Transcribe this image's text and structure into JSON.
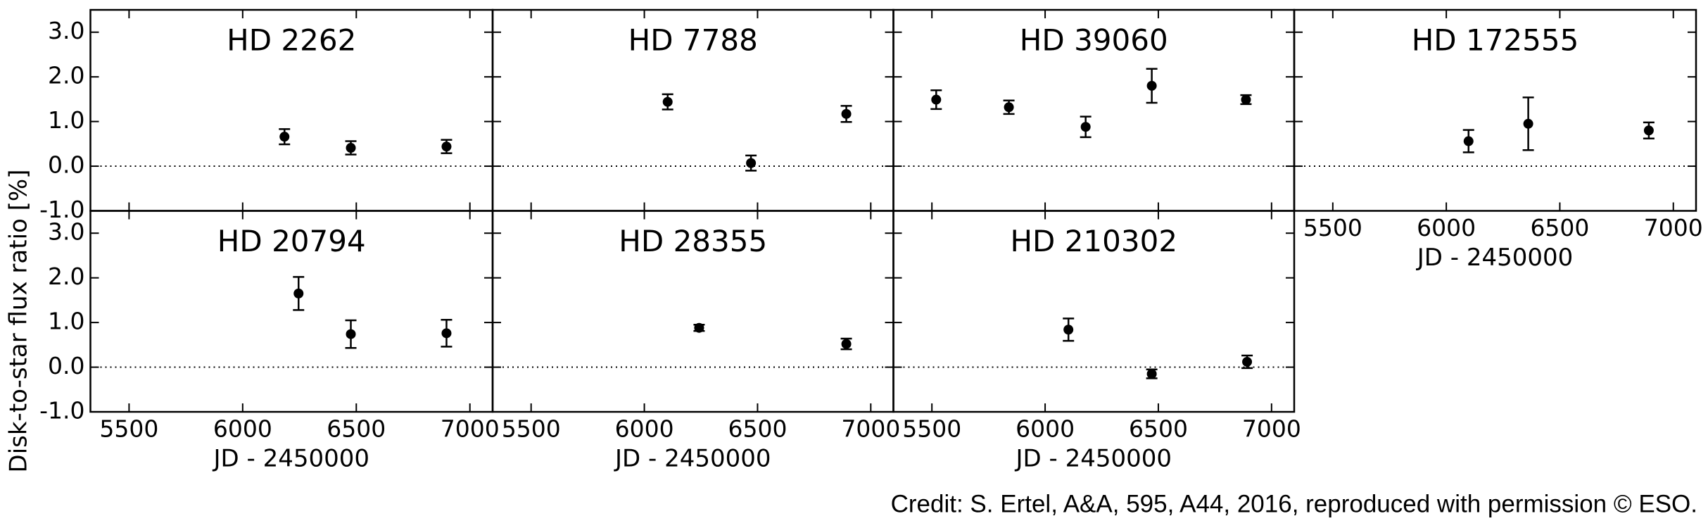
{
  "ylabel": "Disk-to-star flux ratio [%]",
  "credit": "Credit: S. Ertel, A&A, 595, A44, 2016, reproduced with permission © ESO.",
  "chart_data": [
    {
      "type": "scatter",
      "title": "HD 2262",
      "x": [
        6184,
        6476,
        6897
      ],
      "values": [
        0.66,
        0.41,
        0.44
      ],
      "errors": [
        0.17,
        0.15,
        0.15
      ],
      "xlim": [
        5330,
        7100
      ],
      "ylim": [
        -1,
        3.5
      ],
      "xticks": [
        5500,
        6000,
        6500,
        7000
      ],
      "yticks": [
        {
          "value": -1,
          "label": "-1.0"
        },
        {
          "value": 0,
          "label": "0.0"
        },
        {
          "value": 1,
          "label": "1.0"
        },
        {
          "value": 2,
          "label": "2.0"
        },
        {
          "value": 3,
          "label": "3.0"
        }
      ],
      "color": "#000000"
    },
    {
      "type": "scatter",
      "title": "HD 7788",
      "x": [
        6103,
        6471,
        6892
      ],
      "values": [
        1.44,
        0.07,
        1.17
      ],
      "errors": [
        0.17,
        0.17,
        0.18
      ],
      "xlim": [
        5330,
        7100
      ],
      "ylim": [
        -1,
        3.5
      ],
      "xticks": [
        5500,
        6000,
        6500,
        7000
      ],
      "yticks": [
        -1,
        0,
        1,
        2,
        3
      ],
      "color": "#000000"
    },
    {
      "type": "scatter",
      "title": "HD 39060",
      "x": [
        5519,
        5840,
        6179,
        6471,
        6887
      ],
      "values": [
        1.49,
        1.32,
        0.88,
        1.8,
        1.49
      ],
      "errors": [
        0.21,
        0.15,
        0.23,
        0.38,
        0.1
      ],
      "xlim": [
        5330,
        7100
      ],
      "ylim": [
        -1,
        3.5
      ],
      "xticks": [
        5500,
        6000,
        6500,
        7000
      ],
      "yticks": [
        -1,
        0,
        1,
        2,
        3
      ],
      "color": "#000000"
    },
    {
      "type": "scatter",
      "title": "HD 172555",
      "x": [
        6098,
        6361,
        6892
      ],
      "values": [
        0.56,
        0.95,
        0.8
      ],
      "errors": [
        0.25,
        0.59,
        0.18
      ],
      "xlim": [
        5330,
        7100
      ],
      "ylim": [
        -1,
        3.5
      ],
      "xticks": [
        5500,
        6000,
        6500,
        7000
      ],
      "yticks": [
        -1,
        0,
        1,
        2,
        3
      ],
      "xlabel": "JD - 2450000",
      "color": "#000000"
    },
    {
      "type": "scatter",
      "title": "HD 20794",
      "x": [
        6246,
        6476,
        6897
      ],
      "values": [
        1.65,
        0.74,
        0.76
      ],
      "errors": [
        0.37,
        0.31,
        0.3
      ],
      "xlim": [
        5330,
        7100
      ],
      "ylim": [
        -1,
        3.5
      ],
      "xticks": [
        5500,
        6000,
        6500,
        7000
      ],
      "yticks": [
        {
          "value": -1,
          "label": "-1.0"
        },
        {
          "value": 0,
          "label": "0.0"
        },
        {
          "value": 1,
          "label": "1.0"
        },
        {
          "value": 2,
          "label": "2.0"
        },
        {
          "value": 3,
          "label": "3.0"
        }
      ],
      "xlabel": "JD - 2450000",
      "color": "#000000"
    },
    {
      "type": "scatter",
      "title": "HD 28355",
      "x": [
        6242,
        6892
      ],
      "values": [
        0.88,
        0.52
      ],
      "errors": [
        0.07,
        0.12
      ],
      "xlim": [
        5330,
        7100
      ],
      "ylim": [
        -1,
        3.5
      ],
      "xticks": [
        5500,
        6000,
        6500,
        7000
      ],
      "yticks": [
        -1,
        0,
        1,
        2,
        3
      ],
      "xlabel": "JD - 2450000",
      "color": "#000000"
    },
    {
      "type": "scatter",
      "title": "HD 210302",
      "x": [
        6103,
        6471,
        6892
      ],
      "values": [
        0.84,
        -0.15,
        0.12
      ],
      "errors": [
        0.25,
        0.1,
        0.14
      ],
      "xlim": [
        5330,
        7100
      ],
      "ylim": [
        -1,
        3.5
      ],
      "xticks": [
        5500,
        6000,
        6500,
        7000
      ],
      "yticks": [
        -1,
        0,
        1,
        2,
        3
      ],
      "xlabel": "JD - 2450000",
      "color": "#000000"
    }
  ]
}
